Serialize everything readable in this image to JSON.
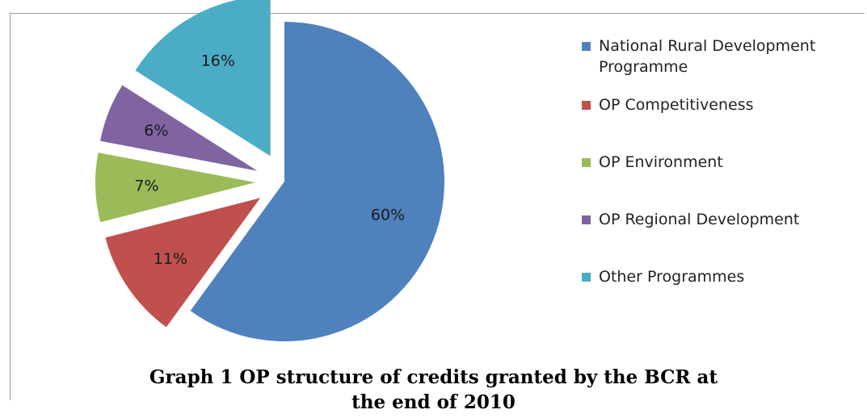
{
  "chart_data": {
    "type": "pie",
    "title_lines": [
      "Graph 1 OP structure of credits granted by the BCR at",
      "the end of 2010"
    ],
    "legend_placement": "right",
    "slices": [
      {
        "name": "National Rural Development Programme",
        "value": 60,
        "label": "60%",
        "color": "#4F81BD",
        "exploded": false
      },
      {
        "name": "OP Competitiveness",
        "value": 11,
        "label": "11%",
        "color": "#C0504D",
        "exploded": true
      },
      {
        "name": "OP Environment",
        "value": 7,
        "label": "7%",
        "color": "#9BBB59",
        "exploded": true
      },
      {
        "name": "OP Regional Development",
        "value": 6,
        "label": "6%",
        "color": "#8064A2",
        "exploded": true
      },
      {
        "name": "Other Programmes",
        "value": 16,
        "label": "16%",
        "color": "#4BACC6",
        "exploded": true
      }
    ]
  }
}
